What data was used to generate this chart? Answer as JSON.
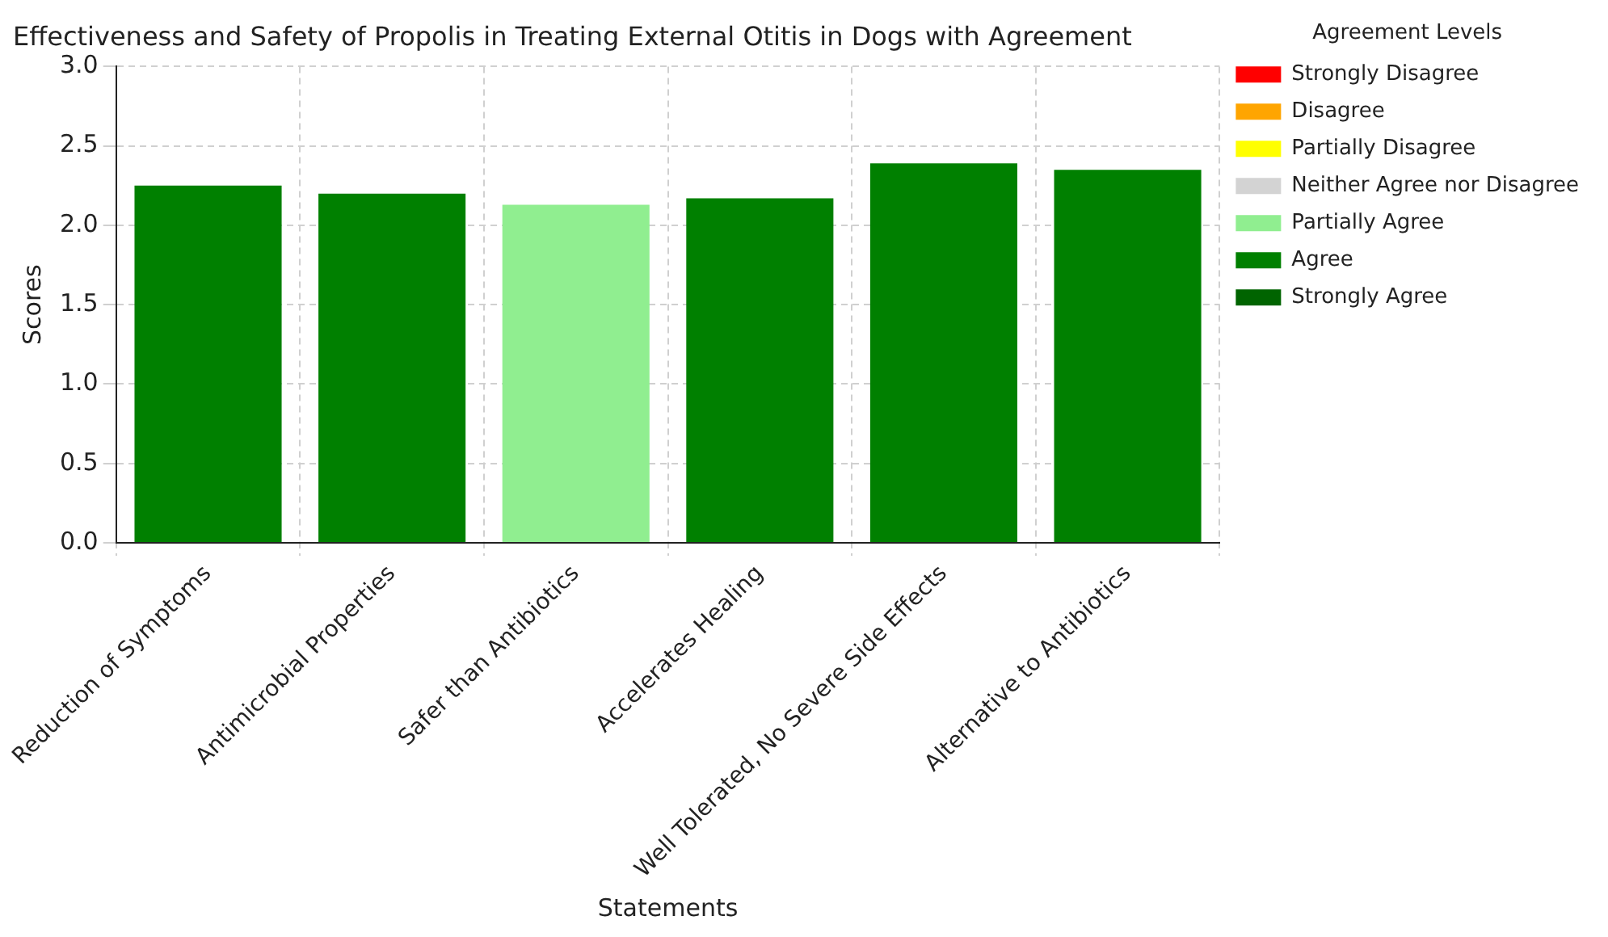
{
  "chart_data": {
    "type": "bar",
    "title": "Effectiveness and Safety of Propolis in Treating External Otitis in Dogs with Agreement",
    "xlabel": "Statements",
    "ylabel": "Scores",
    "legend_title": "Agreement Levels",
    "categories": [
      "Reduction of Symptoms",
      "Antimicrobial Properties",
      "Safer than Antibiotics",
      "Accelerates Healing",
      "Well Tolerated, No Severe Side Effects",
      "Alternative to Antibiotics"
    ],
    "series": [
      {
        "name": "Strongly Disagree",
        "color": "#ff0000",
        "values": [
          null,
          null,
          null,
          null,
          null,
          null
        ]
      },
      {
        "name": "Disagree",
        "color": "#ffa500",
        "values": [
          null,
          null,
          null,
          null,
          null,
          null
        ]
      },
      {
        "name": "Partially Disagree",
        "color": "#ffff00",
        "values": [
          null,
          null,
          null,
          null,
          null,
          null
        ]
      },
      {
        "name": "Neither Agree nor Disagree",
        "color": "#d3d3d3",
        "values": [
          null,
          null,
          null,
          null,
          null,
          null
        ]
      },
      {
        "name": "Partially Agree",
        "color": "#90ee90",
        "values": [
          null,
          null,
          2.13,
          null,
          null,
          null
        ]
      },
      {
        "name": "Agree",
        "color": "#008000",
        "values": [
          2.25,
          2.2,
          null,
          2.17,
          2.39,
          2.35
        ]
      },
      {
        "name": "Strongly Agree",
        "color": "#006400",
        "values": [
          null,
          null,
          null,
          null,
          null,
          null
        ]
      }
    ],
    "stacked": true,
    "ylim": [
      0,
      3
    ],
    "yticks": [
      {
        "value": 0,
        "label": "0.0"
      },
      0.5,
      {
        "value": 1,
        "label": "1.0"
      },
      1.5,
      {
        "value": 2,
        "label": "2.0"
      },
      2.5,
      {
        "value": 3,
        "label": "3.0"
      }
    ],
    "grid": true,
    "legend": "right"
  }
}
